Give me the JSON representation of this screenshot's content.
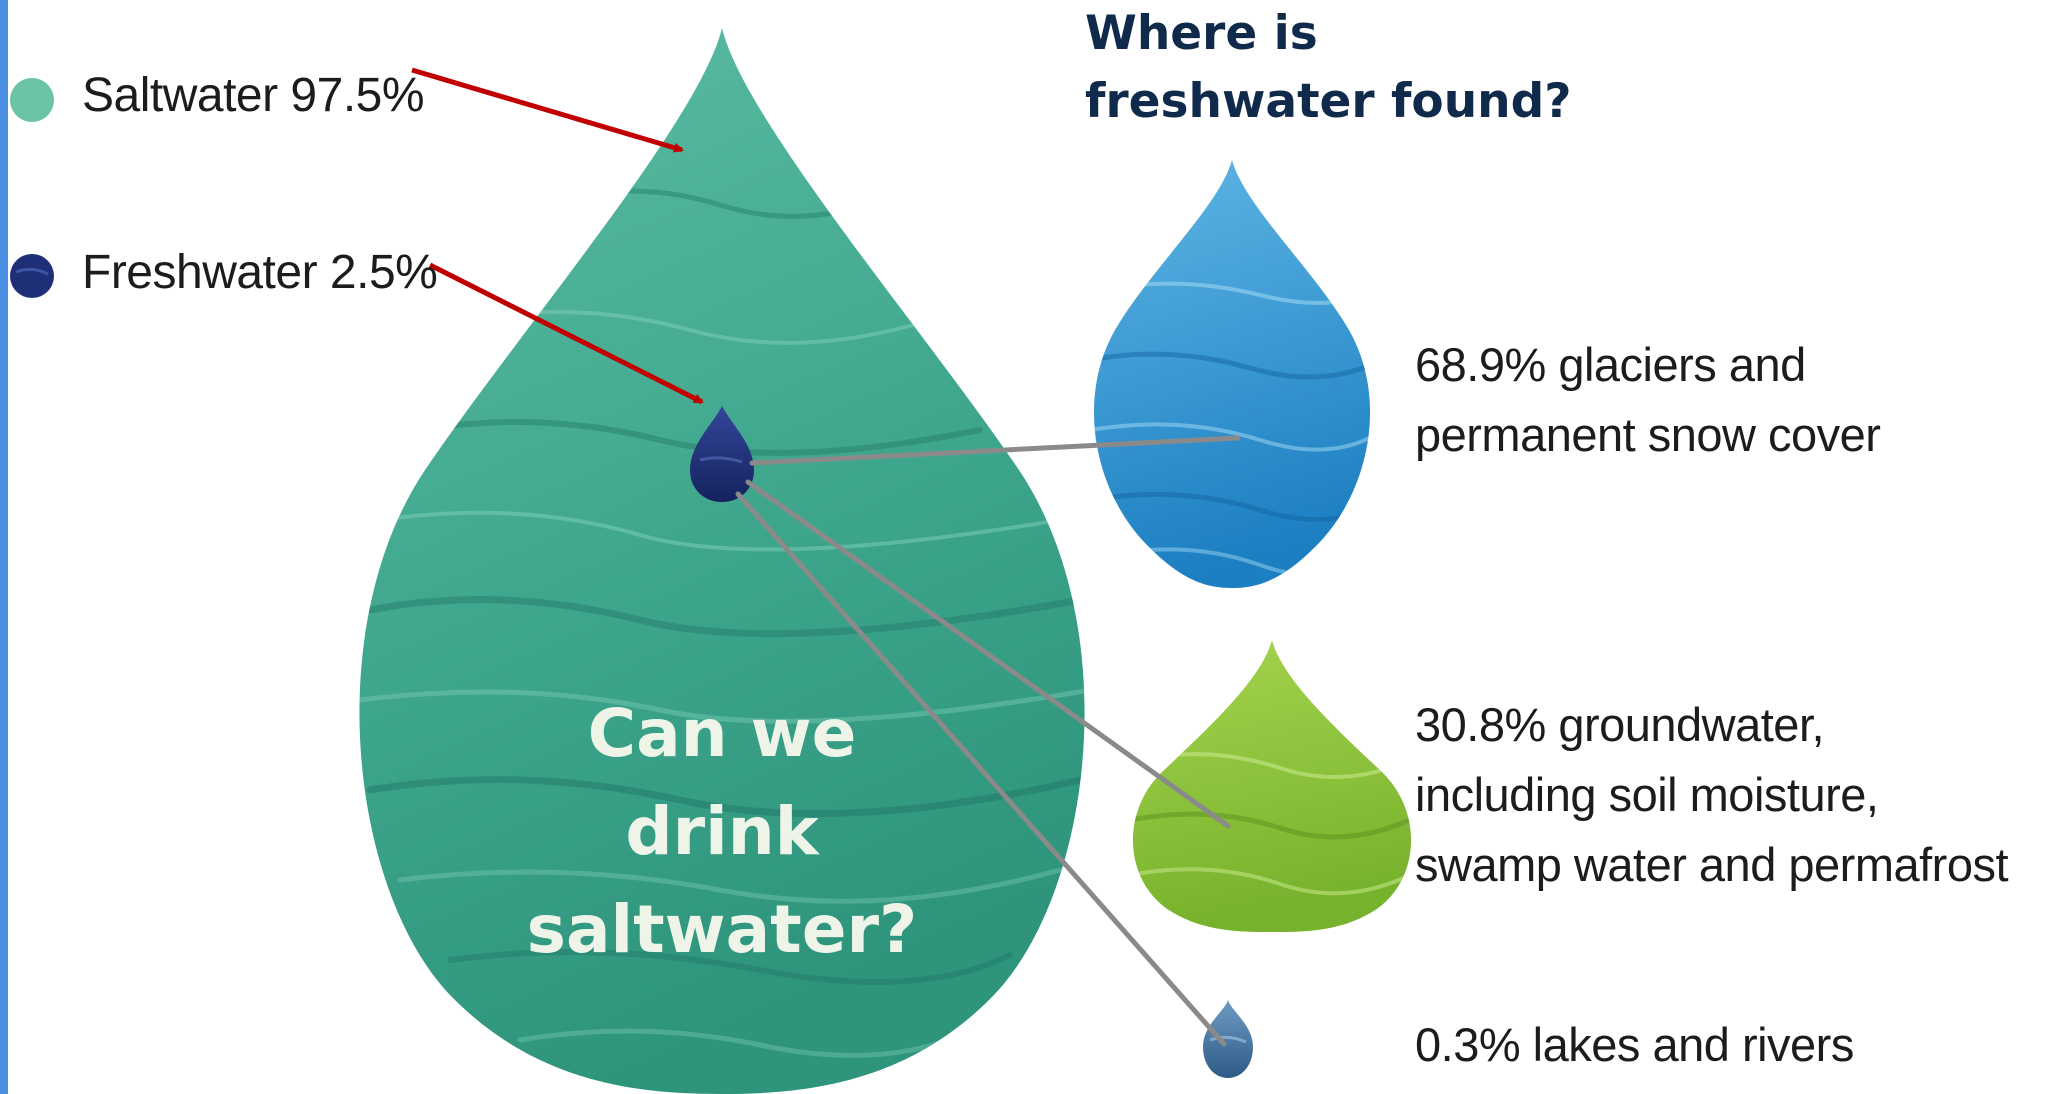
{
  "heading": {
    "line1": "Where is",
    "line2": "freshwater found?"
  },
  "legend": [
    {
      "label": "Saltwater 97.5%",
      "color": "#6cc4a8",
      "icon": "saltwater-dot-icon"
    },
    {
      "label": "Freshwater 2.5%",
      "color": "#1e2f78",
      "icon": "freshwater-dot-icon"
    }
  ],
  "main_drop": {
    "icon": "saltwater-drop-icon",
    "color": "#3fa88f",
    "question": {
      "line1": "Can we",
      "line2": "drink",
      "line3": "saltwater?"
    }
  },
  "freshwater_breakdown": [
    {
      "icon": "glacier-drop-icon",
      "color": "#2b96d2",
      "lines": [
        "68.9% glaciers and",
        "permanent snow cover"
      ]
    },
    {
      "icon": "groundwater-drop-icon",
      "color": "#8cc43a",
      "lines": [
        "30.8% groundwater,",
        "including soil moisture,",
        "swamp water and permafrost"
      ]
    },
    {
      "icon": "lakes-drop-icon",
      "color": "#3a6a98",
      "lines": [
        "0.3% lakes and rivers"
      ]
    }
  ],
  "colors": {
    "arrow": "#c00000",
    "connector": "#8a8a8a",
    "frame": "#4a90e2"
  }
}
